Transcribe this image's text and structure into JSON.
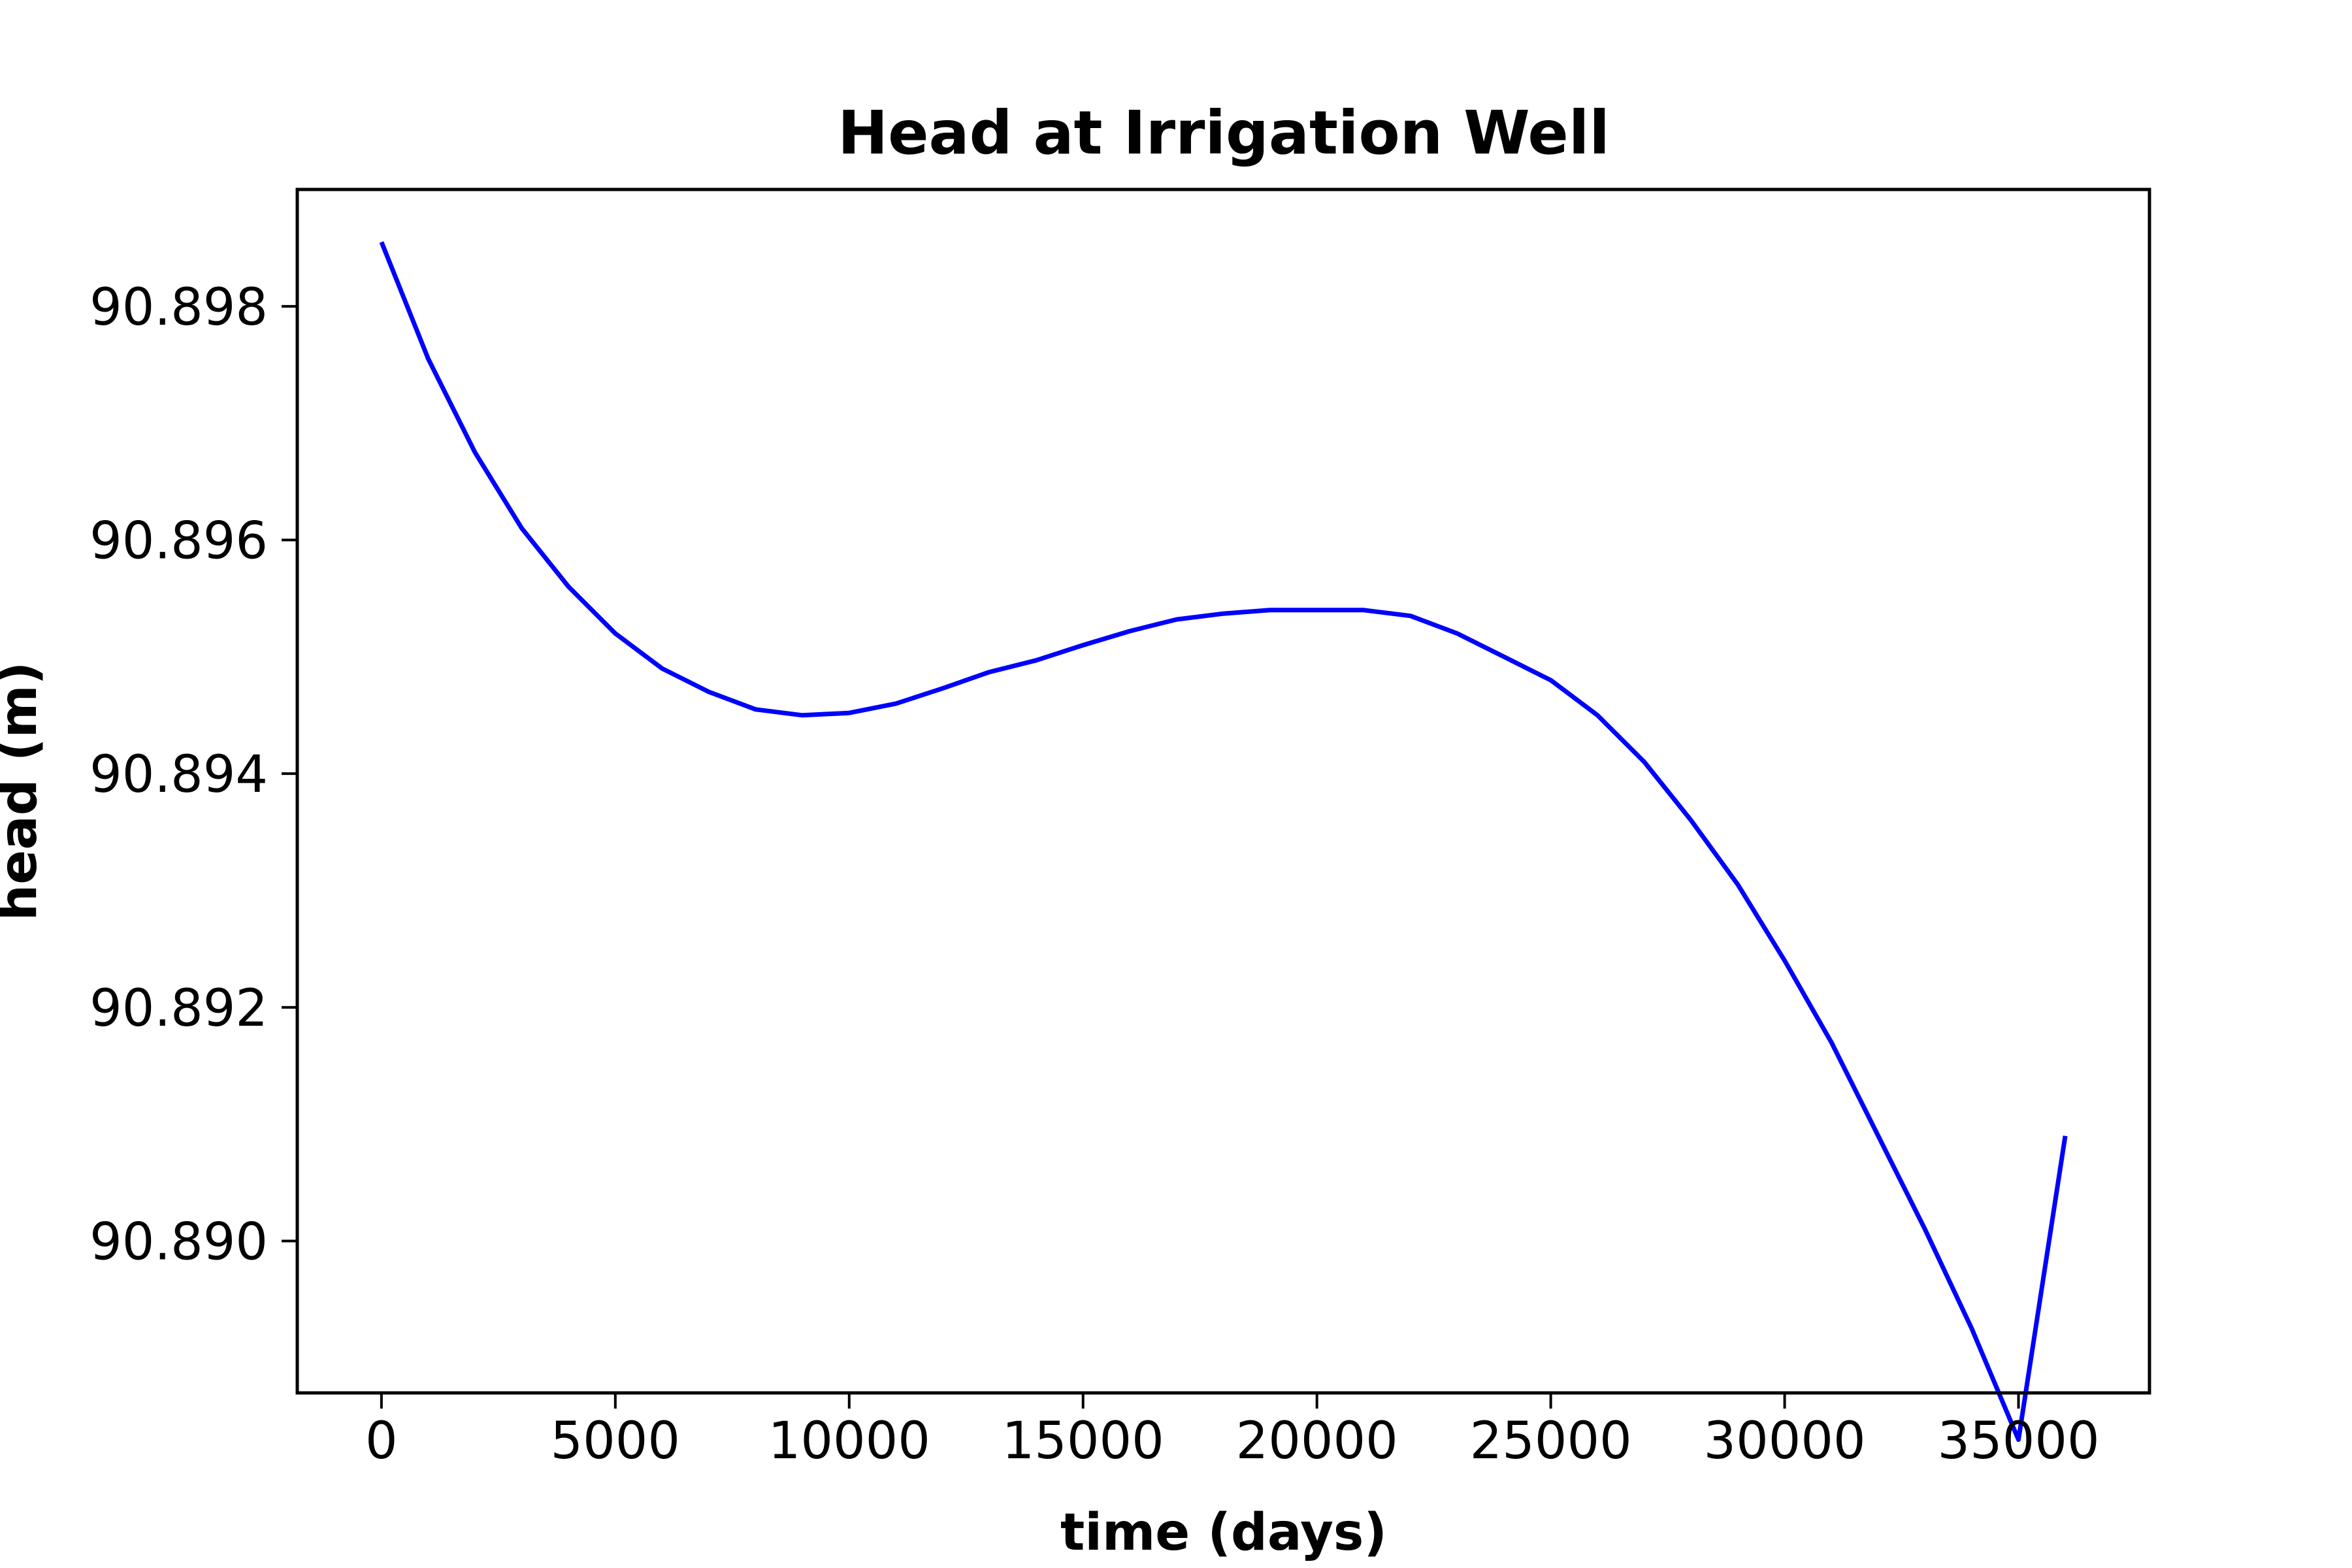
{
  "chart_data": {
    "type": "line",
    "title": "Head at Irrigation Well",
    "xlabel": "time (days)",
    "ylabel": "head (m)",
    "xlim": [
      -1800,
      37800
    ],
    "ylim": [
      90.8887,
      90.899
    ],
    "x_ticks": [
      0,
      5000,
      10000,
      15000,
      20000,
      25000,
      30000,
      35000
    ],
    "x_tick_labels": [
      "0",
      "5000",
      "10000",
      "15000",
      "20000",
      "25000",
      "30000",
      "35000"
    ],
    "y_ticks": [
      90.89,
      90.892,
      90.894,
      90.896,
      90.898
    ],
    "y_tick_labels": [
      "90.890",
      "90.892",
      "90.894",
      "90.896",
      "90.898"
    ],
    "grid": false,
    "legend": "none",
    "series": [
      {
        "color": "#0000ff",
        "x": [
          0,
          1000,
          2000,
          3000,
          4000,
          5000,
          6000,
          7000,
          8000,
          9000,
          10000,
          11000,
          12000,
          13000,
          14000,
          15000,
          16000,
          17000,
          18000,
          19000,
          20000,
          21000,
          22000,
          23000,
          24000,
          25000,
          26000,
          27000,
          28000,
          29000,
          30000,
          31000,
          32000,
          33000,
          34000,
          35000,
          36000
        ],
        "y": [
          90.89855,
          90.89755,
          90.89675,
          90.8961,
          90.8956,
          90.8952,
          90.8949,
          90.8947,
          90.89455,
          90.8945,
          90.89452,
          90.8946,
          90.89473,
          90.89487,
          90.89497,
          90.8951,
          90.89522,
          90.89532,
          90.89537,
          90.8954,
          90.8954,
          90.8954,
          90.89535,
          90.8952,
          90.895,
          90.8948,
          90.8945,
          90.8941,
          90.8936,
          90.89305,
          90.8924,
          90.8917,
          90.8909,
          90.8901,
          90.88925,
          90.8883,
          90.8909
        ]
      }
    ]
  }
}
